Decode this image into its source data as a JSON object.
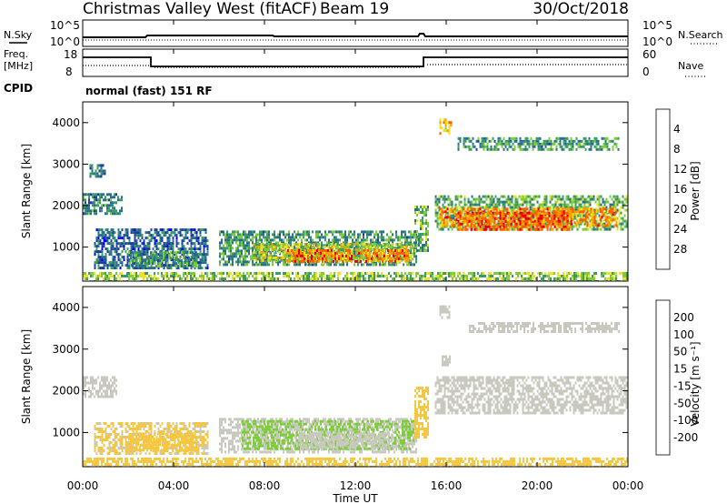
{
  "header": {
    "title": "Christmas Valley West (fitACF)",
    "beam": "Beam 19",
    "date": "30/Oct/2018"
  },
  "sky_panel": {
    "left_label": "N.Sky",
    "right_label": "N.Search",
    "left_ticks": [
      "10^5",
      "10^0"
    ],
    "right_ticks": [
      "10^5",
      "10^0"
    ]
  },
  "freq_panel": {
    "left_label_1": "Freq.",
    "left_label_2": "[MHz]",
    "left_ticks": [
      "18",
      "8"
    ],
    "right_label": "Nave",
    "right_ticks": [
      "60",
      "0"
    ],
    "cpid_label": "CPID",
    "mode_text": "normal (fast) 151 RF"
  },
  "x_axis": {
    "label": "Time UT",
    "ticks": [
      "00:00",
      "04:00",
      "08:00",
      "12:00",
      "16:00",
      "20:00",
      "00:00"
    ]
  },
  "colors": {
    "power": [
      "#0000ff",
      "#1e3c9c",
      "#2a6e8e",
      "#3a9c63",
      "#7ccd38",
      "#f0e020",
      "#f5a000",
      "#f56000",
      "#e80000"
    ],
    "velocity": [
      "#e80000",
      "#f05a00",
      "#f5a000",
      "#f5c640",
      "#c8c8be",
      "#7ccd38",
      "#3a9c63",
      "#1e5aa0",
      "#2020c8"
    ]
  },
  "chart_data": [
    {
      "type": "heatmap",
      "title": "Power",
      "xlabel": "Time UT",
      "ylabel": "Slant Range [km]",
      "xlim": [
        0,
        24
      ],
      "ylim": [
        180,
        4500
      ],
      "y_ticks": [
        "1000",
        "2000",
        "3000",
        "4000"
      ],
      "colorbar": {
        "label": "Power [dB]",
        "ticks": [
          "4",
          "8",
          "12",
          "16",
          "20",
          "24",
          "28"
        ],
        "range": [
          0,
          32
        ]
      },
      "regions": [
        {
          "t0": 0.0,
          "t1": 1.7,
          "r0": 1800,
          "r1": 2300,
          "value": 10
        },
        {
          "t0": 0.3,
          "t1": 1.0,
          "r0": 2700,
          "r1": 3000,
          "value": 9
        },
        {
          "t0": 0.5,
          "t1": 5.5,
          "r0": 500,
          "r1": 1450,
          "value": 8
        },
        {
          "t0": 2.0,
          "t1": 5.0,
          "r0": 550,
          "r1": 900,
          "value": 12
        },
        {
          "t0": 6.0,
          "t1": 14.7,
          "r0": 550,
          "r1": 1400,
          "value": 12
        },
        {
          "t0": 7.5,
          "t1": 14.5,
          "r0": 650,
          "r1": 1100,
          "value": 18
        },
        {
          "t0": 9.0,
          "t1": 14.3,
          "r0": 650,
          "r1": 950,
          "value": 25
        },
        {
          "t0": 14.6,
          "t1": 15.2,
          "r0": 900,
          "r1": 2000,
          "value": 14
        },
        {
          "t0": 15.5,
          "t1": 24.0,
          "r0": 1450,
          "r1": 2250,
          "value": 14
        },
        {
          "t0": 15.7,
          "t1": 23.5,
          "r0": 1500,
          "r1": 1950,
          "value": 24
        },
        {
          "t0": 16.5,
          "t1": 21.5,
          "r0": 1450,
          "r1": 1850,
          "value": 27
        },
        {
          "t0": 16.5,
          "t1": 23.6,
          "r0": 3350,
          "r1": 3650,
          "value": 12
        },
        {
          "t0": 15.7,
          "t1": 16.2,
          "r0": 3750,
          "r1": 4100,
          "value": 22
        },
        {
          "t0": 0.0,
          "t1": 24.0,
          "r0": 200,
          "r1": 400,
          "value": 16
        }
      ]
    },
    {
      "type": "heatmap",
      "title": "Velocity",
      "xlabel": "Time UT",
      "ylabel": "Slant Range [km]",
      "xlim": [
        0,
        24
      ],
      "ylim": [
        180,
        4500
      ],
      "y_ticks": [
        "1000",
        "2000",
        "3000",
        "4000"
      ],
      "colorbar": {
        "label": "Velocity [m s⁻¹]",
        "ticks": [
          "200",
          "100",
          "50",
          "15",
          "-15",
          "-50",
          "-100",
          "-200"
        ],
        "range": [
          -250,
          250
        ]
      },
      "regions": [
        {
          "t0": 0.0,
          "t1": 1.5,
          "r0": 1850,
          "r1": 2350,
          "value": 0
        },
        {
          "t0": 0.5,
          "t1": 5.5,
          "r0": 500,
          "r1": 1250,
          "value": 30
        },
        {
          "t0": 2.0,
          "t1": 5.0,
          "r0": 600,
          "r1": 1000,
          "value": 60
        },
        {
          "t0": 6.0,
          "t1": 14.7,
          "r0": 550,
          "r1": 1350,
          "value": 0
        },
        {
          "t0": 7.0,
          "t1": 14.6,
          "r0": 600,
          "r1": 1300,
          "value": -30
        },
        {
          "t0": 9.5,
          "t1": 13.5,
          "r0": 650,
          "r1": 1000,
          "value": 0
        },
        {
          "t0": 14.6,
          "t1": 15.2,
          "r0": 900,
          "r1": 2100,
          "value": 40
        },
        {
          "t0": 15.5,
          "t1": 24.0,
          "r0": 1450,
          "r1": 2350,
          "value": 0
        },
        {
          "t0": 15.8,
          "t1": 16.2,
          "r0": 2650,
          "r1": 2850,
          "value": 0
        },
        {
          "t0": 17.0,
          "t1": 23.6,
          "r0": 3400,
          "r1": 3650,
          "value": 10
        },
        {
          "t0": 15.7,
          "t1": 16.1,
          "r0": 3750,
          "r1": 4050,
          "value": -5
        },
        {
          "t0": 0.0,
          "t1": 24.0,
          "r0": 200,
          "r1": 400,
          "value": 40
        }
      ]
    }
  ]
}
